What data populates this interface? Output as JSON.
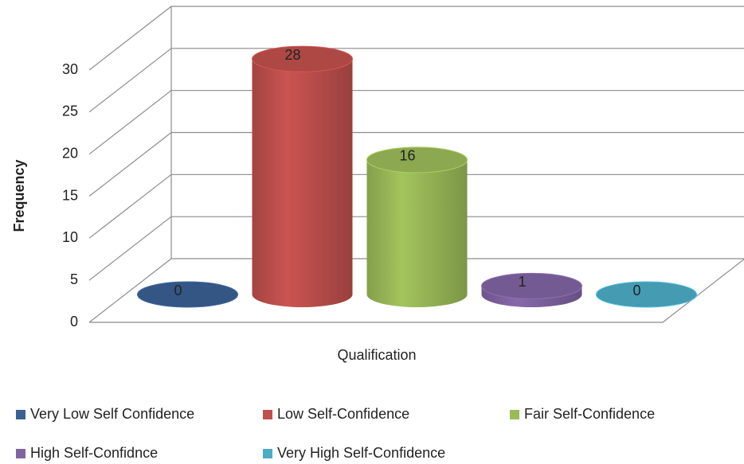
{
  "chart_data": {
    "type": "bar3d",
    "x_label": "Qualification",
    "y_label": "Frequency",
    "ylim": [
      0,
      30
    ],
    "yticks": [
      0,
      5,
      10,
      15,
      20,
      25,
      30
    ],
    "grid": true,
    "legend": "bottom",
    "series": [
      {
        "name": "Very Low Self Confidence",
        "color": "#3a5f94",
        "values": [
          0
        ]
      },
      {
        "name": "Low Self-Confidence",
        "color": "#c0504d",
        "values": [
          28
        ]
      },
      {
        "name": "Fair Self-Confidence",
        "color": "#9bbb59",
        "values": [
          16
        ]
      },
      {
        "name": "High Self-Confidnce",
        "color": "#8064a2",
        "values": [
          1
        ]
      },
      {
        "name": "Very High Self-Confidence",
        "color": "#4bacc6",
        "values": [
          0
        ]
      }
    ]
  }
}
